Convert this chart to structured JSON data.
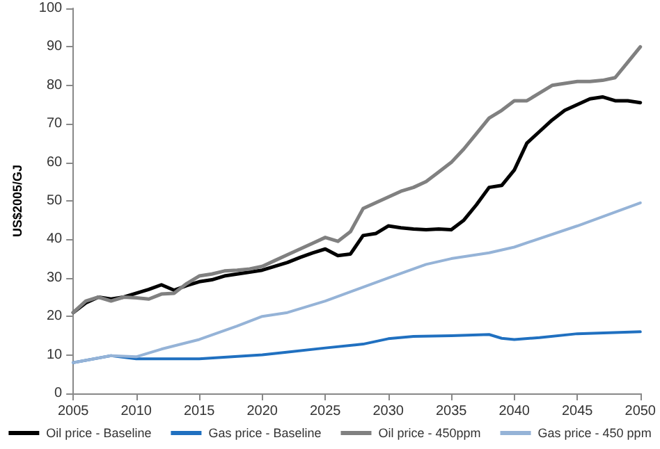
{
  "chart_data": {
    "type": "line",
    "ylabel": "US$2005/GJ",
    "xlim": [
      2005,
      2050
    ],
    "xticks": [
      2005,
      2010,
      2015,
      2020,
      2025,
      2030,
      2035,
      2040,
      2045,
      2050
    ],
    "ylim": [
      0,
      100
    ],
    "yticks": [
      0,
      10,
      20,
      30,
      40,
      50,
      60,
      70,
      80,
      90,
      100
    ],
    "grid": false,
    "legend": "bottom",
    "marker": "none",
    "line_style": "solid",
    "series": [
      {
        "name": "Oil price - Baseline",
        "color": "#000000",
        "x": [
          2005,
          2006,
          2007,
          2008,
          2009,
          2010,
          2011,
          2012,
          2013,
          2014,
          2015,
          2016,
          2017,
          2018,
          2019,
          2020,
          2021,
          2022,
          2023,
          2024,
          2025,
          2026,
          2027,
          2028,
          2029,
          2030,
          2031,
          2032,
          2033,
          2034,
          2035,
          2036,
          2037,
          2038,
          2039,
          2040,
          2041,
          2042,
          2043,
          2044,
          2045,
          2046,
          2047,
          2048,
          2049,
          2050
        ],
        "values": [
          21,
          23.5,
          25,
          24.5,
          25,
          26,
          27,
          28.2,
          26.8,
          28,
          29,
          29.5,
          30.5,
          31,
          31.5,
          32,
          33,
          34,
          35.3,
          36.5,
          37.5,
          35.8,
          36.2,
          41,
          41.5,
          43.5,
          43,
          42.7,
          42.5,
          42.7,
          42.5,
          45,
          49,
          53.5,
          54,
          58,
          65,
          68,
          71,
          73.5,
          75,
          76.5,
          77,
          76,
          76,
          75.5
        ]
      },
      {
        "name": "Gas price - Baseline",
        "color": "#2070c0",
        "x": [
          2005,
          2008,
          2010,
          2015,
          2020,
          2025,
          2028,
          2030,
          2032,
          2035,
          2038,
          2039,
          2040,
          2042,
          2045,
          2050
        ],
        "values": [
          8,
          9.8,
          9,
          9,
          10,
          11.8,
          12.8,
          14.2,
          14.8,
          15,
          15.3,
          14.3,
          14,
          14.5,
          15.5,
          16
        ]
      },
      {
        "name": "Oil price - 450ppm",
        "color": "#808080",
        "x": [
          2005,
          2006,
          2007,
          2008,
          2009,
          2010,
          2011,
          2012,
          2013,
          2014,
          2015,
          2016,
          2017,
          2018,
          2019,
          2020,
          2021,
          2022,
          2023,
          2024,
          2025,
          2026,
          2027,
          2028,
          2029,
          2030,
          2031,
          2032,
          2033,
          2034,
          2035,
          2036,
          2037,
          2038,
          2039,
          2040,
          2041,
          2042,
          2043,
          2044,
          2045,
          2046,
          2047,
          2048,
          2049,
          2050
        ],
        "values": [
          21,
          24,
          25,
          24,
          25,
          24.8,
          24.5,
          25.8,
          26,
          28.5,
          30.5,
          31,
          31.8,
          32,
          32.3,
          33,
          34.5,
          36,
          37.5,
          39,
          40.5,
          39.5,
          42,
          48,
          49.5,
          51,
          52.5,
          53.5,
          55,
          57.5,
          60,
          63.5,
          67.5,
          71.5,
          73.5,
          76,
          76,
          78,
          80,
          80.5,
          81,
          81,
          81.3,
          82,
          86,
          90
        ]
      },
      {
        "name": "Gas price - 450 ppm",
        "color": "#95b3d7",
        "x": [
          2005,
          2008,
          2010,
          2012,
          2015,
          2018,
          2020,
          2022,
          2025,
          2030,
          2033,
          2035,
          2038,
          2040,
          2045,
          2050
        ],
        "values": [
          8,
          9.8,
          9.5,
          11.5,
          14,
          17.5,
          20,
          21,
          24,
          30,
          33.5,
          35,
          36.5,
          38,
          43.5,
          49.5
        ]
      }
    ]
  }
}
